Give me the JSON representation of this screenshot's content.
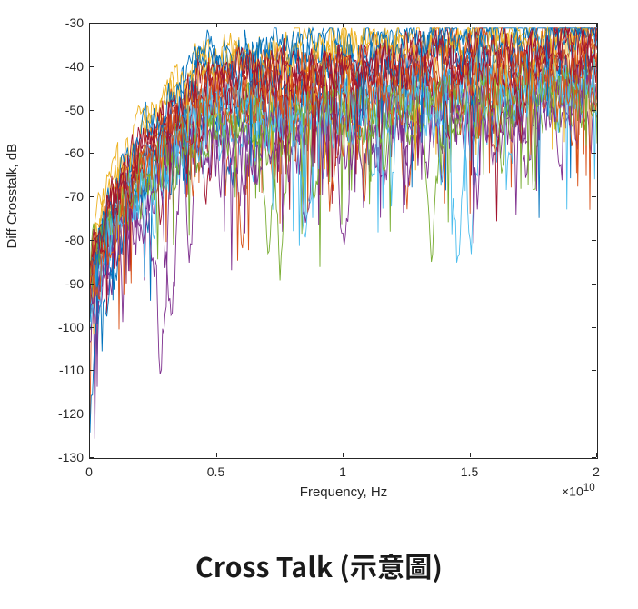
{
  "caption": "Cross Talk (示意圖)",
  "chart": {
    "type": "line",
    "xlabel": "Frequency, Hz",
    "ylabel": "Diff Crosstalk, dB",
    "exponent_label": "×10",
    "exponent_sup": "10",
    "xlim": [
      0,
      2
    ],
    "ylim": [
      -130,
      -30
    ],
    "xticks": [
      0,
      0.5,
      1,
      1.5,
      2
    ],
    "xtick_labels": [
      "0",
      "0.5",
      "1",
      "1.5",
      "2"
    ],
    "yticks": [
      -130,
      -120,
      -110,
      -100,
      -90,
      -80,
      -70,
      -60,
      -50,
      -40,
      -30
    ],
    "ytick_labels": [
      "-130",
      "-120",
      "-110",
      "-100",
      "-90",
      "-80",
      "-70",
      "-60",
      "-50",
      "-40",
      "-30"
    ],
    "background_color": "#ffffff",
    "axis_color": "#262626",
    "label_fontsize": 15,
    "tick_fontsize": 14,
    "line_width": 0.9,
    "colors": {
      "blue": "#0072bd",
      "orange": "#d95319",
      "yellow": "#edb120",
      "purple": "#7e2f8e",
      "green": "#77ac30",
      "cyan": "#4dbeee",
      "red": "#a2142f"
    },
    "series": [
      {
        "color": "blue",
        "seed": 1,
        "floor": -98,
        "rise": 50,
        "noise": 12,
        "dipFreq": 0.55,
        "dipDepth": 25
      },
      {
        "color": "orange",
        "seed": 2,
        "floor": -95,
        "rise": 48,
        "noise": 10,
        "dipFreq": 1.25,
        "dipDepth": 30
      },
      {
        "color": "yellow",
        "seed": 3,
        "floor": -90,
        "rise": 52,
        "noise": 9,
        "dipFreq": 0.9,
        "dipDepth": 18
      },
      {
        "color": "purple",
        "seed": 4,
        "floor": -100,
        "rise": 45,
        "noise": 14,
        "dipFreq": 0.32,
        "dipDepth": 35
      },
      {
        "color": "green",
        "seed": 5,
        "floor": -94,
        "rise": 40,
        "noise": 11,
        "dipFreq": 0.7,
        "dipDepth": 28
      },
      {
        "color": "cyan",
        "seed": 6,
        "floor": -97,
        "rise": 44,
        "noise": 13,
        "dipFreq": 1.5,
        "dipDepth": 32
      },
      {
        "color": "red",
        "seed": 7,
        "floor": -92,
        "rise": 46,
        "noise": 10,
        "dipFreq": 0.45,
        "dipDepth": 22
      },
      {
        "color": "blue",
        "seed": 8,
        "floor": -96,
        "rise": 55,
        "noise": 11,
        "dipFreq": 1.75,
        "dipDepth": 20
      },
      {
        "color": "orange",
        "seed": 9,
        "floor": -99,
        "rise": 50,
        "noise": 12,
        "dipFreq": 0.6,
        "dipDepth": 26
      },
      {
        "color": "yellow",
        "seed": 10,
        "floor": -88,
        "rise": 48,
        "noise": 8,
        "dipFreq": 1.1,
        "dipDepth": 15
      },
      {
        "color": "purple",
        "seed": 11,
        "floor": -102,
        "rise": 42,
        "noise": 15,
        "dipFreq": 0.28,
        "dipDepth": 40
      },
      {
        "color": "green",
        "seed": 12,
        "floor": -93,
        "rise": 38,
        "noise": 12,
        "dipFreq": 1.35,
        "dipDepth": 30
      },
      {
        "color": "cyan",
        "seed": 13,
        "floor": -95,
        "rise": 46,
        "noise": 14,
        "dipFreq": 0.85,
        "dipDepth": 34
      },
      {
        "color": "red",
        "seed": 14,
        "floor": -90,
        "rise": 44,
        "noise": 9,
        "dipFreq": 1.6,
        "dipDepth": 24
      },
      {
        "color": "blue",
        "seed": 15,
        "floor": -120,
        "rise": 80,
        "noise": 10,
        "dipFreq": 0.05,
        "dipDepth": 0
      },
      {
        "color": "orange",
        "seed": 16,
        "floor": -94,
        "rise": 52,
        "noise": 11,
        "dipFreq": 1.9,
        "dipDepth": 18
      },
      {
        "color": "yellow",
        "seed": 17,
        "floor": -87,
        "rise": 50,
        "noise": 9,
        "dipFreq": 0.5,
        "dipDepth": 16
      },
      {
        "color": "purple",
        "seed": 18,
        "floor": -98,
        "rise": 43,
        "noise": 13,
        "dipFreq": 1.0,
        "dipDepth": 28
      },
      {
        "color": "green",
        "seed": 19,
        "floor": -91,
        "rise": 39,
        "noise": 12,
        "dipFreq": 0.75,
        "dipDepth": 32
      },
      {
        "color": "cyan",
        "seed": 20,
        "floor": -96,
        "rise": 45,
        "noise": 15,
        "dipFreq": 1.45,
        "dipDepth": 36
      },
      {
        "color": "red",
        "seed": 21,
        "floor": -89,
        "rise": 47,
        "noise": 10,
        "dipFreq": 0.38,
        "dipDepth": 20
      },
      {
        "color": "blue",
        "seed": 22,
        "floor": -93,
        "rise": 56,
        "noise": 9,
        "dipFreq": 1.2,
        "dipDepth": 14
      },
      {
        "color": "orange",
        "seed": 23,
        "floor": -97,
        "rise": 49,
        "noise": 13,
        "dipFreq": 0.95,
        "dipDepth": 26
      },
      {
        "color": "red",
        "seed": 24,
        "floor": -91,
        "rise": 48,
        "noise": 11,
        "dipFreq": 1.7,
        "dipDepth": 22
      }
    ]
  }
}
